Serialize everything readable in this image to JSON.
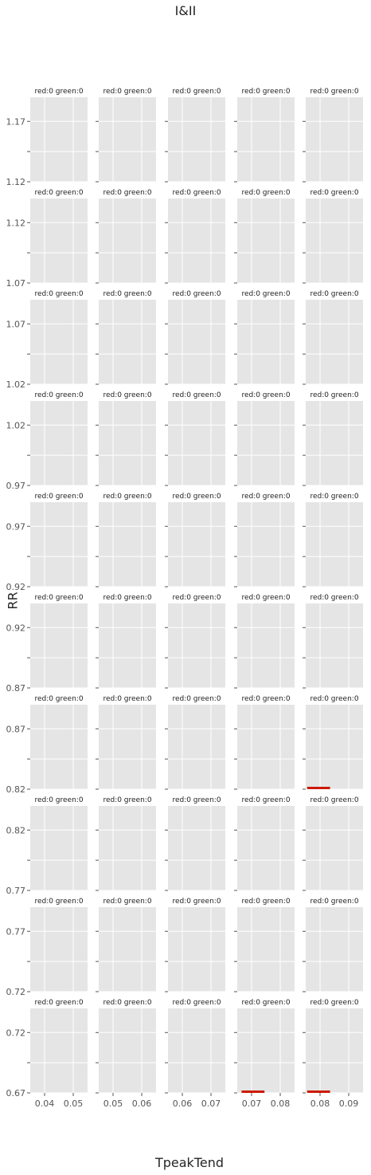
{
  "figure": {
    "title": "I&II",
    "xlabel": "TpeakTend",
    "ylabel": "RR",
    "background": "#ffffff",
    "panel_color": "#e5e5e5",
    "grid_color": "#ffffff",
    "bar_color": "#cc1a00",
    "text_color": "#555555"
  },
  "chart_data": {
    "type": "bar",
    "layout": {
      "rows": 10,
      "cols": 5,
      "sharey": "row",
      "sharex": "col"
    },
    "style": "ggplot",
    "grid": true,
    "columns": [
      {
        "xlim": [
          0.035,
          0.055
        ],
        "xticks": [
          0.04,
          0.05
        ],
        "xtick_labels": [
          "0.04",
          "0.05"
        ]
      },
      {
        "xlim": [
          0.045,
          0.065
        ],
        "xticks": [
          0.05,
          0.06
        ],
        "xtick_labels": [
          "0.05",
          "0.06"
        ]
      },
      {
        "xlim": [
          0.055,
          0.075
        ],
        "xticks": [
          0.06,
          0.07
        ],
        "xtick_labels": [
          "0.06",
          "0.07"
        ]
      },
      {
        "xlim": [
          0.065,
          0.085
        ],
        "xticks": [
          0.07,
          0.08
        ],
        "xtick_labels": [
          "0.07",
          "0.08"
        ]
      },
      {
        "xlim": [
          0.075,
          0.095
        ],
        "xticks": [
          0.08,
          0.09
        ],
        "xtick_labels": [
          "0.08",
          "0.09"
        ]
      }
    ],
    "rows": [
      {
        "ylim": [
          1.12,
          1.19
        ],
        "yticks": [
          1.12,
          1.17
        ],
        "ytick_labels": [
          "1.12",
          "1.17"
        ]
      },
      {
        "ylim": [
          1.07,
          1.14
        ],
        "yticks": [
          1.07,
          1.12
        ],
        "ytick_labels": [
          "1.07",
          "1.12"
        ]
      },
      {
        "ylim": [
          1.02,
          1.09
        ],
        "yticks": [
          1.02,
          1.07
        ],
        "ytick_labels": [
          "1.02",
          "1.07"
        ]
      },
      {
        "ylim": [
          0.97,
          1.04
        ],
        "yticks": [
          0.97,
          1.02
        ],
        "ytick_labels": [
          "0.97",
          "1.02"
        ]
      },
      {
        "ylim": [
          0.92,
          0.99
        ],
        "yticks": [
          0.92,
          0.97
        ],
        "ytick_labels": [
          "0.92",
          "0.97"
        ]
      },
      {
        "ylim": [
          0.87,
          0.94
        ],
        "yticks": [
          0.87,
          0.92
        ],
        "ytick_labels": [
          "0.87",
          "0.92"
        ]
      },
      {
        "ylim": [
          0.82,
          0.89
        ],
        "yticks": [
          0.82,
          0.87
        ],
        "ytick_labels": [
          "0.82",
          "0.87"
        ]
      },
      {
        "ylim": [
          0.77,
          0.84
        ],
        "yticks": [
          0.77,
          0.82
        ],
        "ytick_labels": [
          "0.77",
          "0.82"
        ]
      },
      {
        "ylim": [
          0.72,
          0.79
        ],
        "yticks": [
          0.72,
          0.77
        ],
        "ytick_labels": [
          "0.72",
          "0.77"
        ]
      },
      {
        "ylim": [
          0.67,
          0.74
        ],
        "yticks": [
          0.67,
          0.72
        ],
        "ytick_labels": [
          "0.67",
          "0.72"
        ]
      }
    ],
    "panel_titles": [
      [
        "red:0 green:0",
        "red:0 green:0",
        "red:0 green:0",
        "red:0 green:0",
        "red:0 green:0"
      ],
      [
        "red:0 green:0",
        "red:0 green:0",
        "red:0 green:0",
        "red:0 green:0",
        "red:0 green:0"
      ],
      [
        "red:0 green:0",
        "red:0 green:0",
        "red:0 green:0",
        "red:0 green:0",
        "red:0 green:0"
      ],
      [
        "red:0 green:0",
        "red:0 green:0",
        "red:0 green:0",
        "red:0 green:0",
        "red:0 green:0"
      ],
      [
        "red:0 green:0",
        "red:0 green:0",
        "red:0 green:0",
        "red:0 green:0",
        "red:0 green:0"
      ],
      [
        "red:0 green:0",
        "red:0 green:0",
        "red:0 green:0",
        "red:0 green:0",
        "red:0 green:0"
      ],
      [
        "red:0 green:0",
        "red:0 green:0",
        "red:0 green:0",
        "red:0 green:0",
        "red:0 green:0"
      ],
      [
        "red:0 green:0",
        "red:0 green:0",
        "red:0 green:0",
        "red:0 green:0",
        "red:0 green:0"
      ],
      [
        "red:0 green:0",
        "red:0 green:0",
        "red:0 green:0",
        "red:0 green:0",
        "red:0 green:0"
      ],
      [
        "red:0 green:0",
        "red:0 green:0",
        "red:0 green:0",
        "red:0 green:0",
        "red:0 green:0"
      ]
    ],
    "marks": [
      {
        "row": 6,
        "col": 4,
        "x_start": 0.0755,
        "x_end": 0.0835,
        "y": 0.821
      },
      {
        "row": 9,
        "col": 3,
        "x_start": 0.0665,
        "x_end": 0.0745,
        "y": 0.671
      },
      {
        "row": 9,
        "col": 4,
        "x_start": 0.0755,
        "x_end": 0.0835,
        "y": 0.671
      }
    ]
  }
}
